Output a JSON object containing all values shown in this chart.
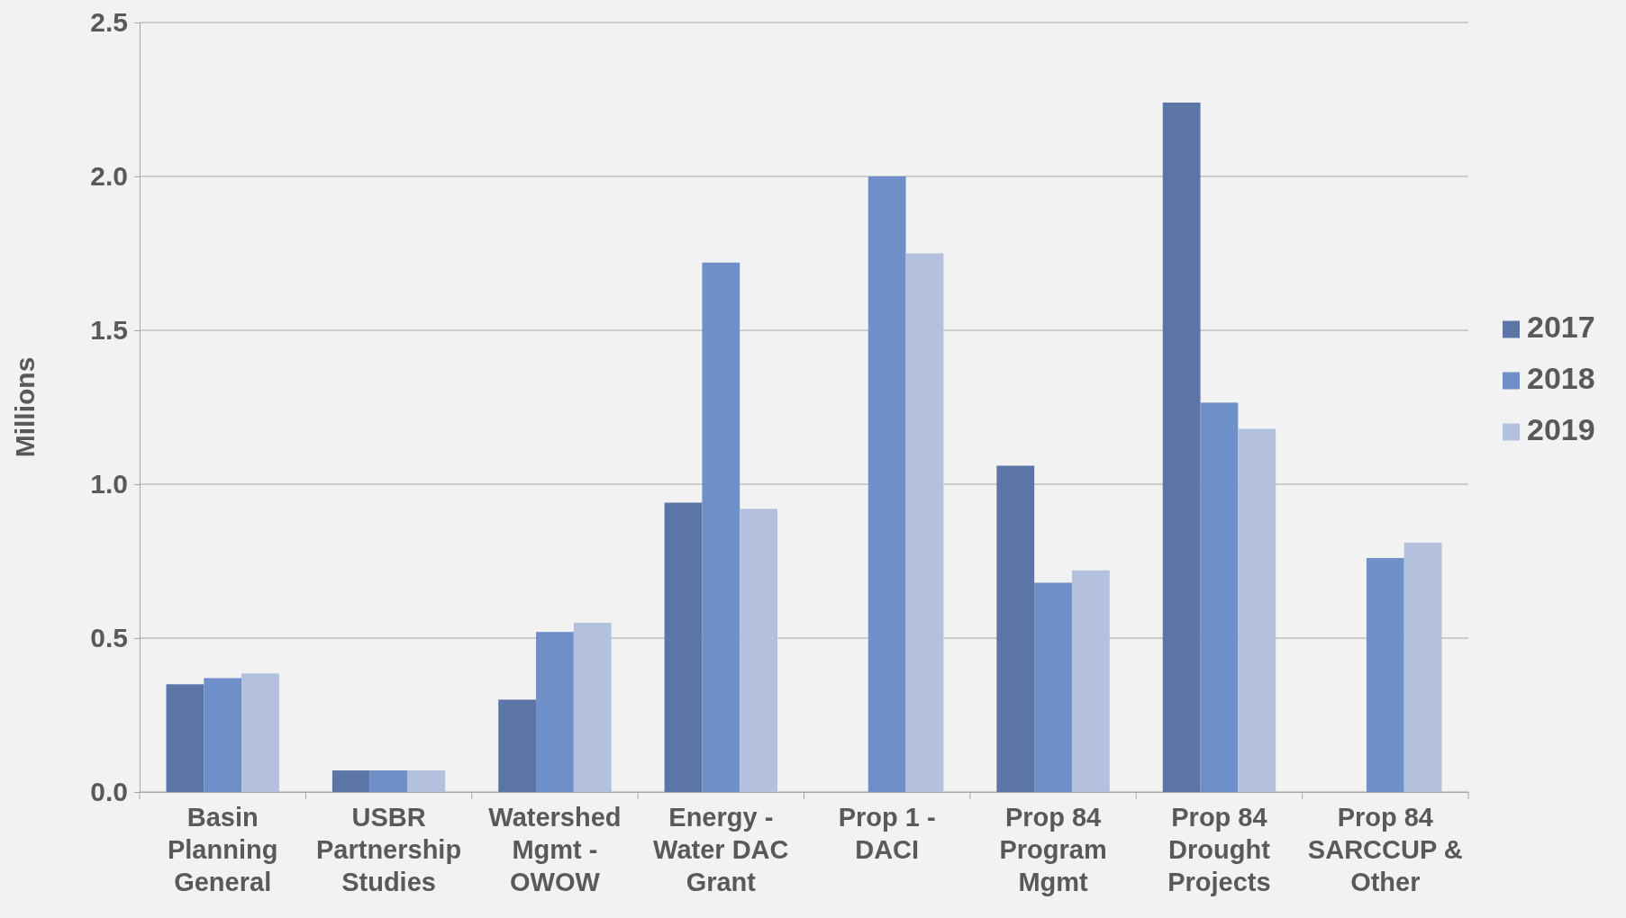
{
  "chart_data": {
    "type": "bar",
    "ylabel": "Millions",
    "categories": [
      "Basin Planning General",
      "USBR Partnership Studies",
      "Watershed Mgmt - OWOW",
      "Energy - Water DAC Grant",
      "Prop 1 - DACI",
      "Prop 84 Program Mgmt",
      "Prop 84 Drought Projects",
      "Prop 84 SARCCUP & Other"
    ],
    "series": [
      {
        "name": "2017",
        "color": "#5a75a6",
        "values": [
          0.35,
          0.07,
          0.3,
          0.94,
          null,
          1.06,
          2.24,
          null
        ]
      },
      {
        "name": "2018",
        "color": "#6f8fc9",
        "values": [
          0.37,
          0.07,
          0.52,
          1.72,
          2.0,
          0.68,
          1.265,
          0.76
        ]
      },
      {
        "name": "2019",
        "color": "#b3c1de",
        "values": [
          0.385,
          0.07,
          0.55,
          0.92,
          1.75,
          0.72,
          1.18,
          0.81
        ]
      }
    ],
    "ylim": [
      0,
      2.5
    ],
    "yticks": [
      {
        "value": 0,
        "label": "0.0"
      },
      {
        "value": 0.5,
        "label": "0.5"
      },
      {
        "value": 1,
        "label": "1.0"
      },
      {
        "value": 1.5,
        "label": "1.5"
      },
      {
        "value": 2,
        "label": "2.0"
      },
      {
        "value": 2.5,
        "label": "2.5"
      }
    ],
    "grid": "y",
    "legend": "right"
  }
}
